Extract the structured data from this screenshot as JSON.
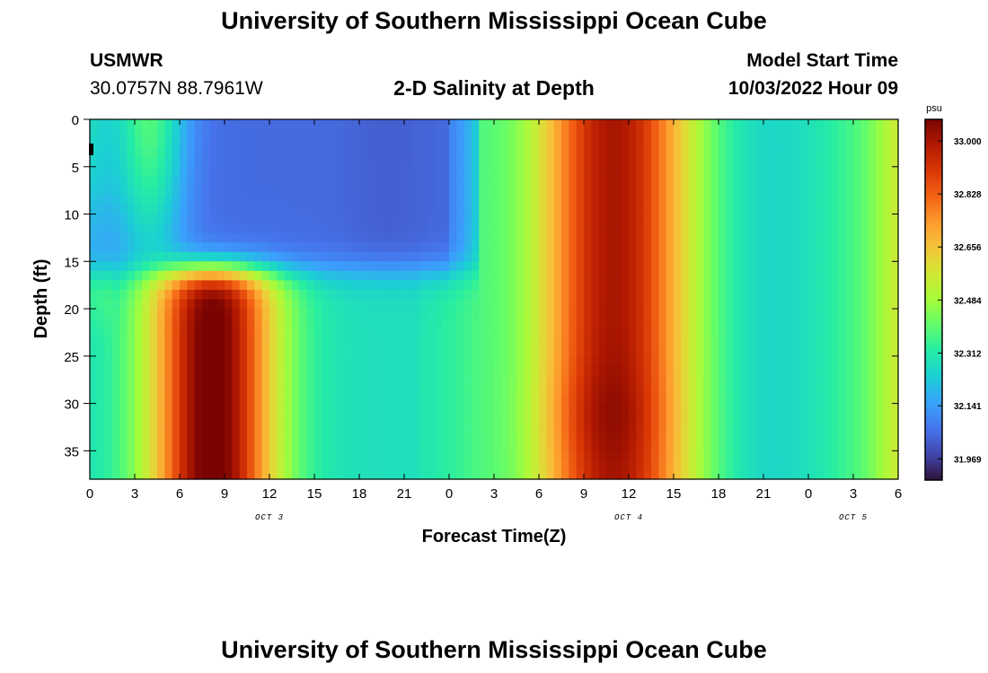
{
  "header": {
    "title": "University of Southern Mississippi Ocean Cube",
    "station": "USMWR",
    "coords": "30.0757N  88.7961W",
    "subtitle": "2-D Salinity at Depth",
    "model_label": "Model Start Time",
    "model_time": "10/03/2022 Hour 09"
  },
  "footer": {
    "title": "University of Southern Mississippi Ocean Cube"
  },
  "chart_data": {
    "type": "heatmap",
    "title": "2-D Salinity at Depth",
    "xlabel": "Forecast Time(Z)",
    "ylabel": "Depth (ft)",
    "x_tick_labels": [
      "0",
      "3",
      "6",
      "9",
      "12",
      "15",
      "18",
      "21",
      "0",
      "3",
      "6",
      "9",
      "12",
      "15",
      "18",
      "21",
      "0",
      "3",
      "6"
    ],
    "x_range_hours": [
      0,
      54
    ],
    "date_labels": [
      {
        "text": "OCT 3",
        "hour": 12
      },
      {
        "text": "OCT 4",
        "hour": 36
      },
      {
        "text": "OCT 5",
        "hour": 51
      }
    ],
    "y_ticks": [
      0,
      5,
      10,
      15,
      20,
      25,
      30,
      35
    ],
    "ylim": [
      0,
      38
    ],
    "y_inverted": true,
    "colorbar": {
      "unit": "psu",
      "ticks": [
        "33.000",
        "32.828",
        "32.656",
        "32.484",
        "32.312",
        "32.141",
        "31.969"
      ],
      "range": [
        31.9,
        33.07
      ],
      "colormap": [
        "#30123b",
        "#4145ab",
        "#4675ed",
        "#39a2fc",
        "#1bcfd4",
        "#24eca6",
        "#61fc6c",
        "#a4fc3b",
        "#d1e834",
        "#f3c63a",
        "#fe9b2d",
        "#f36315",
        "#d93806",
        "#b11901",
        "#7a0402"
      ]
    },
    "grid": false,
    "nx": 108,
    "ny": 38
  }
}
